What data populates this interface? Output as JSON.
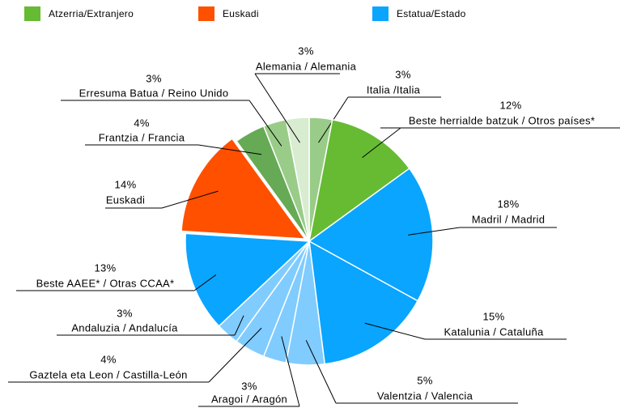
{
  "chart_data": {
    "type": "pie",
    "legend": [
      {
        "name": "Atzerria/Extranjero",
        "color": "#66bb33"
      },
      {
        "name": "Euskadi",
        "color": "#ff5000"
      },
      {
        "name": "Estatua/Estado",
        "color": "#0aa5ff"
      }
    ],
    "categories": [
      "Italia /Italia",
      "Beste herrialde batzuk / Otros países*",
      "Madril / Madrid",
      "Katalunia / Cataluña",
      "Valentzia / Valencia",
      "Aragoi / Aragón",
      "Gaztela eta Leon / Castilla-León",
      "Andaluzia / Andalucía",
      "Beste AAEE* / Otras CCAA*",
      "Euskadi",
      "Frantzia / Francia",
      "Erresuma Batua / Reino Unido",
      "Alemania / Alemania"
    ],
    "values": [
      3,
      12,
      18,
      15,
      5,
      3,
      4,
      3,
      13,
      14,
      4,
      3,
      3
    ],
    "value_labels": [
      "3%",
      "12%",
      "18%",
      "15%",
      "5%",
      "3%",
      "4%",
      "3%",
      "13%",
      "14%",
      "4%",
      "3%",
      "3%"
    ],
    "colors": [
      "#99cc88",
      "#66bb33",
      "#0aa5ff",
      "#0aa5ff",
      "#80ccff",
      "#80ccff",
      "#80ccff",
      "#80ccff",
      "#0aa5ff",
      "#ff5000",
      "#66aa55",
      "#99cc88",
      "#d8ecd0"
    ]
  }
}
